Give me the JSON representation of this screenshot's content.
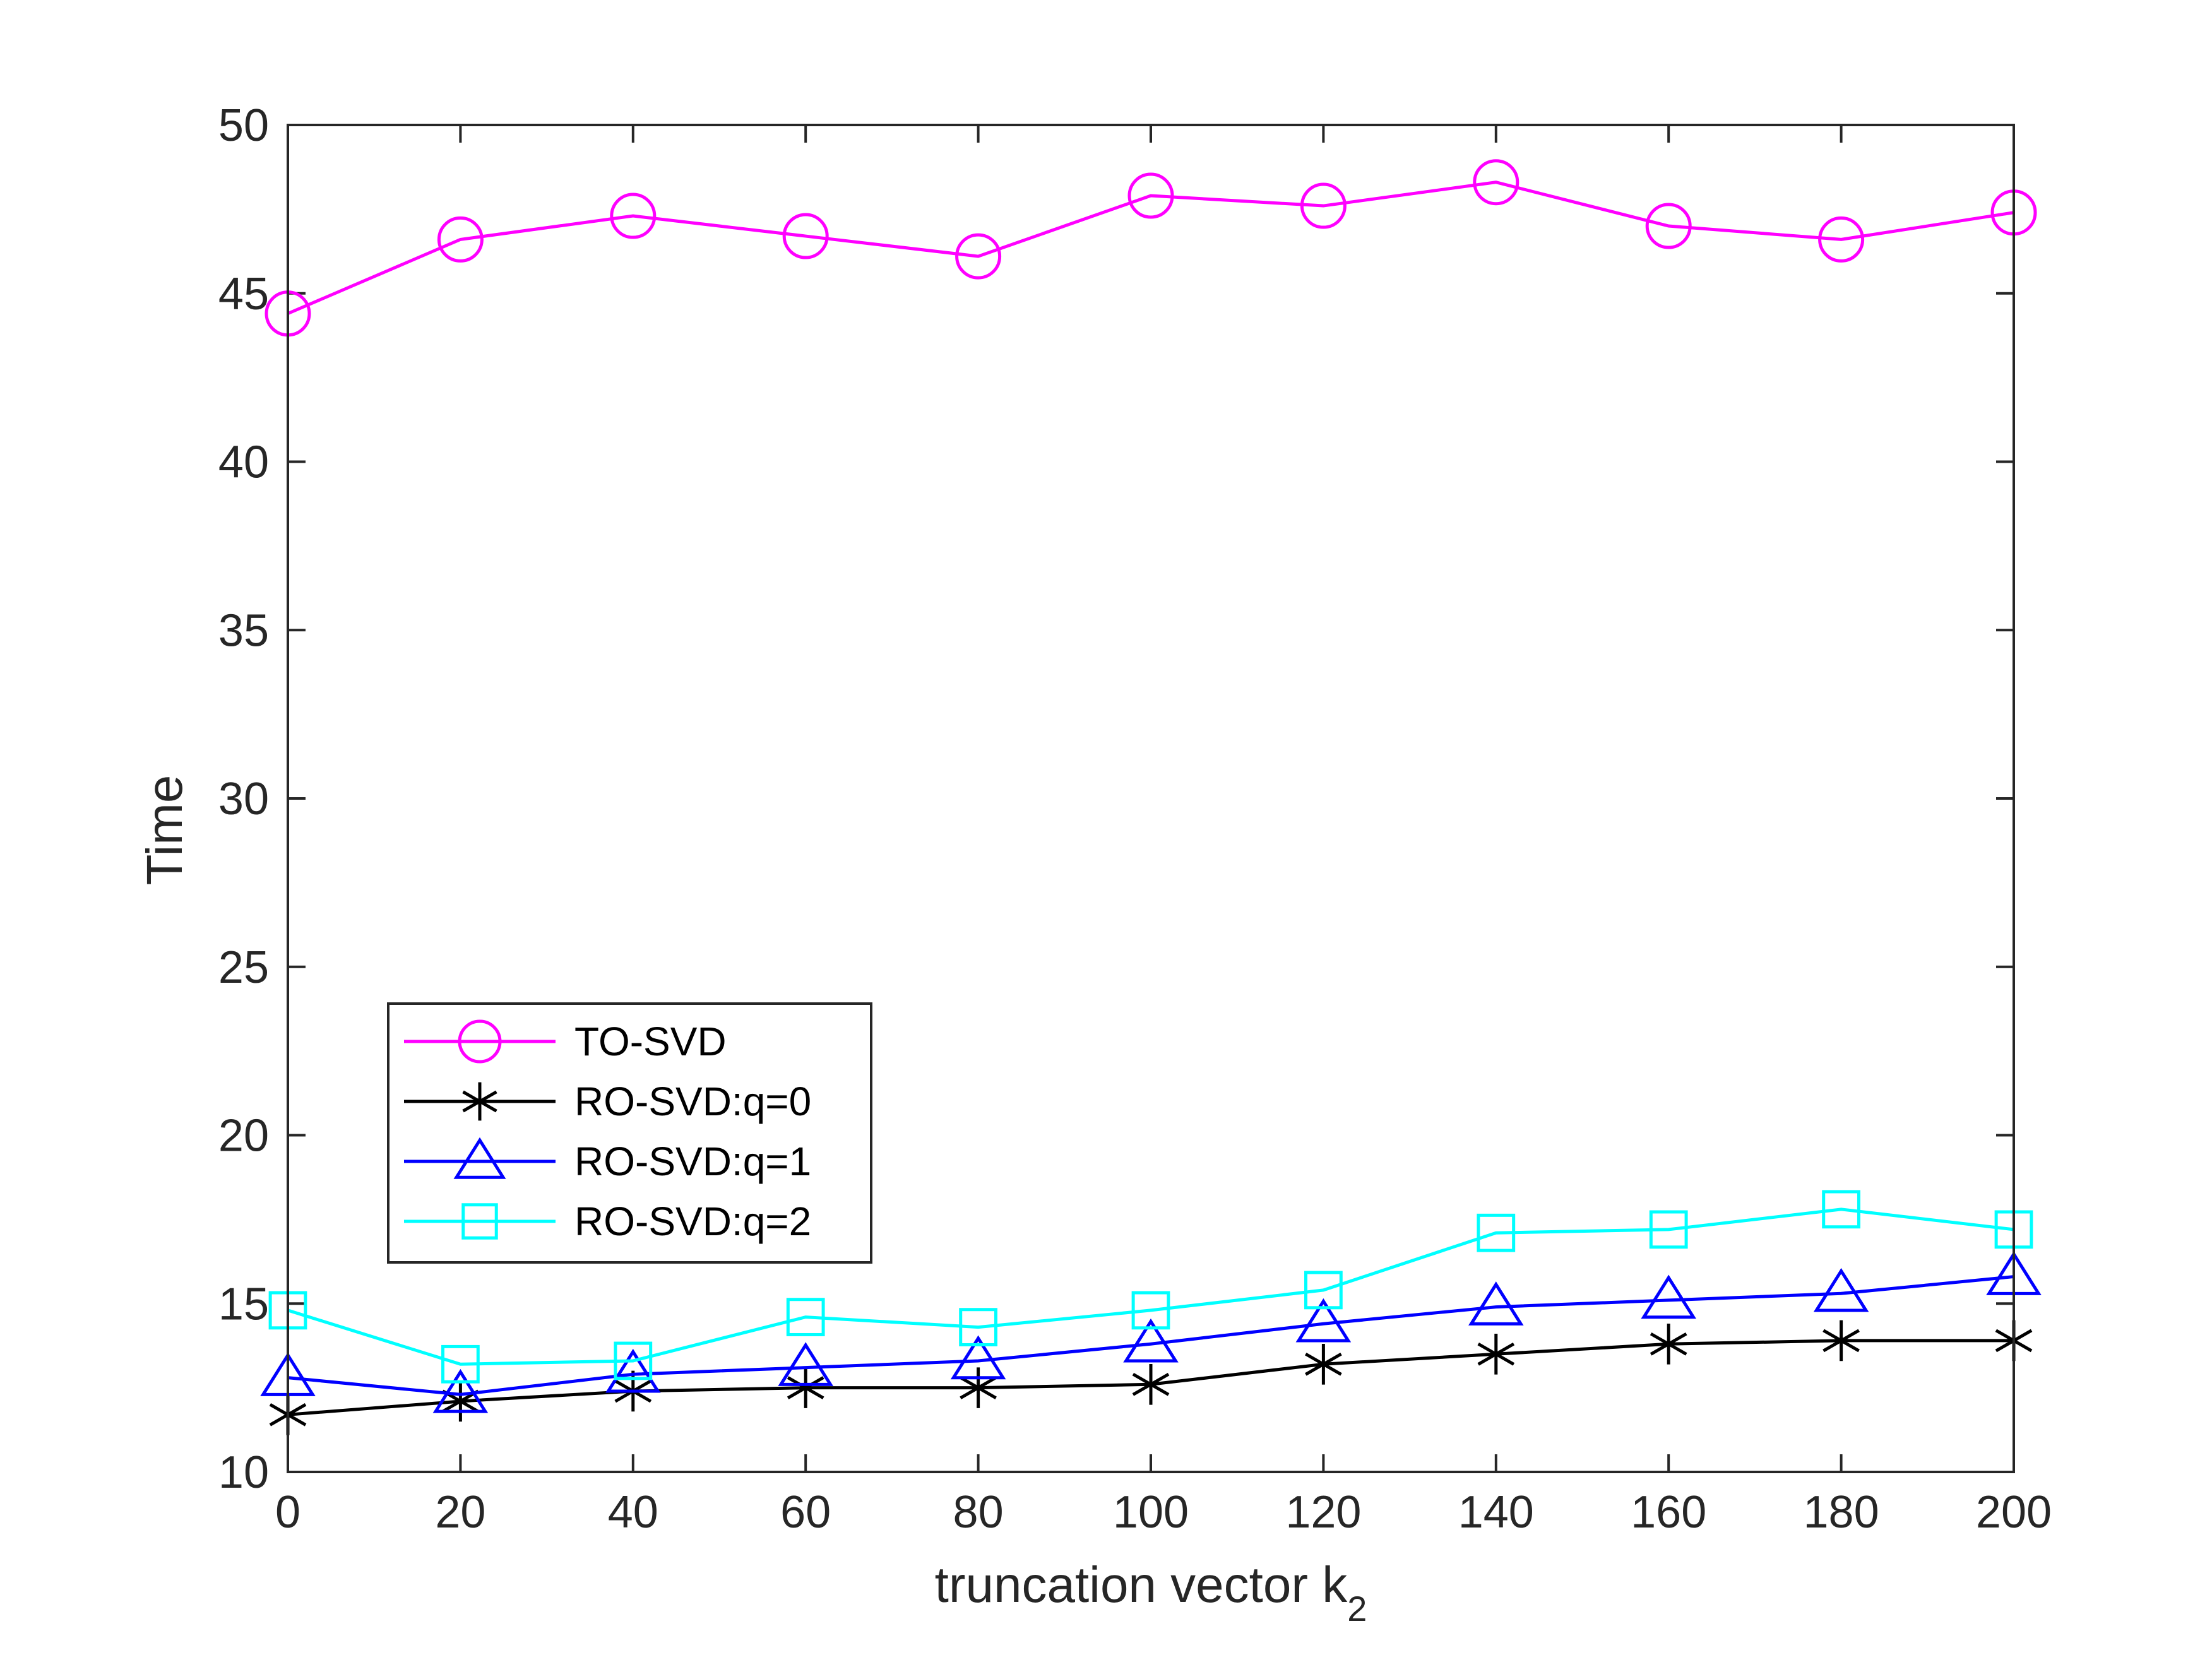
{
  "chart_data": {
    "type": "line",
    "title": "",
    "xlabel": "truncation vector k",
    "xlabel_subscript": "2",
    "ylabel": "Time",
    "xlim": [
      0,
      200
    ],
    "ylim": [
      10,
      50
    ],
    "x_ticks": [
      "0",
      "20",
      "40",
      "60",
      "80",
      "100",
      "120",
      "140",
      "160",
      "180",
      "200"
    ],
    "y_ticks": [
      "10",
      "15",
      "20",
      "25",
      "30",
      "35",
      "40",
      "45",
      "50"
    ],
    "x": [
      0,
      20,
      40,
      60,
      80,
      100,
      120,
      140,
      160,
      180,
      200
    ],
    "grid": false,
    "box": true,
    "legend_position": "lower-left",
    "series": [
      {
        "name": "TO-SVD",
        "color": "#ff00ff",
        "marker": "circle",
        "values": [
          44.4,
          46.6,
          47.3,
          46.7,
          46.1,
          47.9,
          47.6,
          48.3,
          47.0,
          46.6,
          47.4
        ]
      },
      {
        "name": "RO-SVD:q=0",
        "color": "#000000",
        "marker": "asterisk",
        "values": [
          11.7,
          12.1,
          12.4,
          12.5,
          12.5,
          12.6,
          13.2,
          13.5,
          13.8,
          13.9,
          13.9
        ]
      },
      {
        "name": "RO-SVD:q=1",
        "color": "#0000ff",
        "marker": "triangle",
        "values": [
          12.8,
          12.3,
          12.9,
          13.1,
          13.3,
          13.8,
          14.4,
          14.9,
          15.1,
          15.3,
          15.8
        ]
      },
      {
        "name": "RO-SVD:q=2",
        "color": "#00ffff",
        "marker": "square",
        "values": [
          14.8,
          13.2,
          13.3,
          14.6,
          14.3,
          14.8,
          15.4,
          17.1,
          17.2,
          17.8,
          17.2
        ]
      }
    ]
  }
}
